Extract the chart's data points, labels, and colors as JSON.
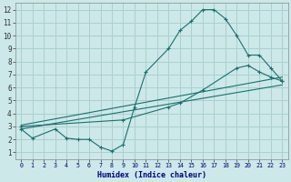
{
  "xlabel": "Humidex (Indice chaleur)",
  "bg_color": "#cce8e8",
  "grid_color": "#aad0d0",
  "line_color": "#1a7070",
  "xlim": [
    -0.5,
    23.5
  ],
  "ylim": [
    0.5,
    12.5
  ],
  "xticks": [
    0,
    1,
    2,
    3,
    4,
    5,
    6,
    7,
    8,
    9,
    10,
    11,
    12,
    13,
    14,
    15,
    16,
    17,
    18,
    19,
    20,
    21,
    22,
    23
  ],
  "yticks": [
    1,
    2,
    3,
    4,
    5,
    6,
    7,
    8,
    9,
    10,
    11,
    12
  ],
  "line1_x": [
    0,
    1,
    3,
    4,
    5,
    6,
    7,
    8,
    9,
    10,
    11,
    13,
    14,
    15,
    16,
    17,
    18,
    19,
    20,
    21,
    22,
    23
  ],
  "line1_y": [
    2.8,
    2.1,
    2.8,
    2.1,
    2.0,
    2.0,
    1.4,
    1.1,
    1.6,
    4.5,
    7.2,
    9.0,
    10.4,
    11.1,
    12.0,
    12.0,
    11.3,
    10.0,
    8.5,
    8.5,
    7.5,
    6.5
  ],
  "line2_x": [
    0,
    9,
    13,
    14,
    16,
    19,
    20,
    21,
    22,
    23
  ],
  "line2_y": [
    3.0,
    3.5,
    4.5,
    4.8,
    5.8,
    7.5,
    7.7,
    7.2,
    6.8,
    6.5
  ],
  "line3_x": [
    0,
    23
  ],
  "line3_y": [
    3.1,
    6.8
  ],
  "line4_x": [
    0,
    23
  ],
  "line4_y": [
    2.8,
    6.2
  ]
}
